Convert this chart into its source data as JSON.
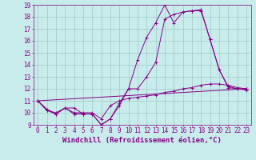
{
  "title": "",
  "xlabel": "Windchill (Refroidissement éolien,°C)",
  "ylabel": "",
  "background_color": "#c8ecec",
  "grid_color": "#a0c8c8",
  "line_color": "#880088",
  "xmin": 0,
  "xmax": 23,
  "ymin": 9,
  "ymax": 19,
  "series": [
    {
      "x": [
        0,
        1,
        2,
        3,
        4,
        5,
        6,
        7,
        8,
        9,
        10,
        11,
        12,
        13,
        14,
        15,
        16,
        17,
        18,
        19,
        20,
        21,
        22,
        23
      ],
      "y": [
        11.0,
        10.2,
        9.9,
        10.4,
        10.4,
        9.9,
        9.9,
        9.0,
        9.5,
        10.6,
        12.0,
        14.4,
        16.3,
        17.5,
        19.0,
        17.5,
        18.4,
        18.5,
        18.5,
        16.1,
        13.6,
        12.1,
        12.0,
        11.9
      ]
    },
    {
      "x": [
        0,
        1,
        2,
        3,
        4,
        5,
        6,
        7,
        8,
        9,
        10,
        11,
        12,
        13,
        14,
        15,
        16,
        17,
        18,
        19,
        20,
        21,
        22,
        23
      ],
      "y": [
        11.0,
        10.3,
        9.9,
        10.4,
        9.9,
        9.9,
        9.9,
        9.0,
        9.5,
        10.8,
        12.0,
        12.0,
        13.0,
        14.2,
        17.8,
        18.2,
        18.4,
        18.5,
        18.6,
        16.1,
        13.6,
        12.2,
        12.0,
        12.0
      ]
    },
    {
      "x": [
        0,
        1,
        2,
        3,
        4,
        5,
        6,
        7,
        8,
        9,
        10,
        11,
        12,
        13,
        14,
        15,
        16,
        17,
        18,
        19,
        20,
        21,
        22,
        23
      ],
      "y": [
        11.0,
        10.2,
        10.0,
        10.4,
        10.0,
        10.0,
        10.0,
        9.5,
        10.6,
        11.0,
        11.2,
        11.3,
        11.4,
        11.5,
        11.7,
        11.8,
        12.0,
        12.1,
        12.3,
        12.4,
        12.4,
        12.3,
        12.1,
        12.0
      ]
    },
    {
      "x": [
        0,
        23
      ],
      "y": [
        11.0,
        12.0
      ]
    }
  ],
  "tick_fontsize": 5.5,
  "xlabel_fontsize": 6.5
}
